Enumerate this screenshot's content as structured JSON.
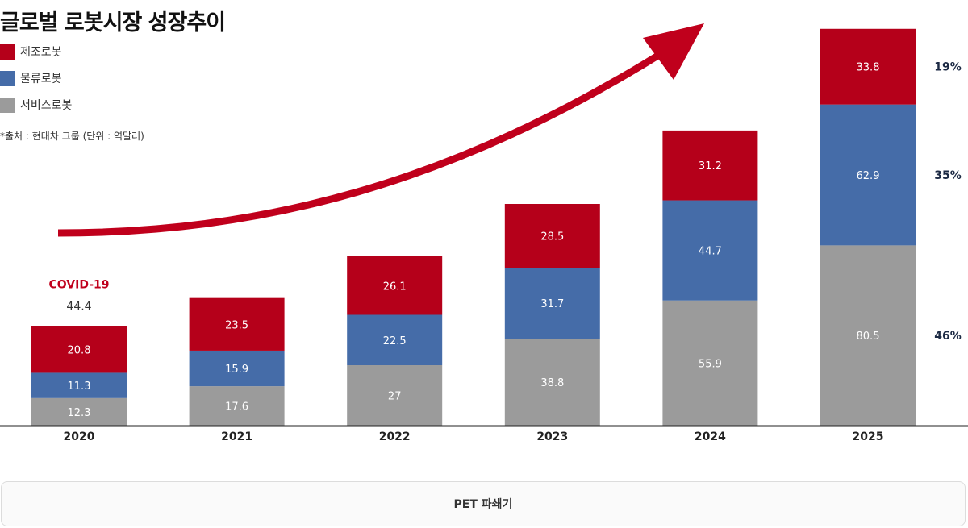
{
  "title": "글로벌 로봇시장 성장추이",
  "source_note": "*출처 : 현대차 그룹 (단위 : 역달러)",
  "footer_button": "PET 파쇄기",
  "colors": {
    "manufacturing": "#b5001a",
    "logistics": "#456ca8",
    "service": "#9b9b9b",
    "arrow": "#c0001c",
    "share_text": "#1c2a44"
  },
  "chart_data": {
    "type": "bar",
    "stacked": true,
    "categories": [
      "2020",
      "2021",
      "2022",
      "2023",
      "2024",
      "2025"
    ],
    "series": [
      {
        "name": "서비스로봇",
        "key": "service",
        "values": [
          12.3,
          17.6,
          27,
          38.8,
          55.9,
          80.5
        ]
      },
      {
        "name": "물류로봇",
        "key": "logistics",
        "values": [
          11.3,
          15.9,
          22.5,
          31.7,
          44.7,
          62.9
        ]
      },
      {
        "name": "제조로봇",
        "key": "manufacturing",
        "values": [
          20.8,
          23.5,
          26.1,
          28.5,
          31.2,
          33.8
        ]
      }
    ],
    "total_labels": [
      "44.4",
      "",
      "",
      "",
      "",
      ""
    ],
    "annotations": [
      {
        "category": "2020",
        "text": "COVID-19"
      }
    ],
    "share_2025": [
      {
        "series": "manufacturing",
        "text": "19%"
      },
      {
        "series": "logistics",
        "text": "35%"
      },
      {
        "series": "service",
        "text": "46%"
      }
    ],
    "ylim": [
      0,
      180
    ],
    "legend_order": [
      "제조로봇",
      "물류로봇",
      "서비스로봇"
    ],
    "legend_position": "top-left",
    "grid": false,
    "trend_arrow": true
  }
}
